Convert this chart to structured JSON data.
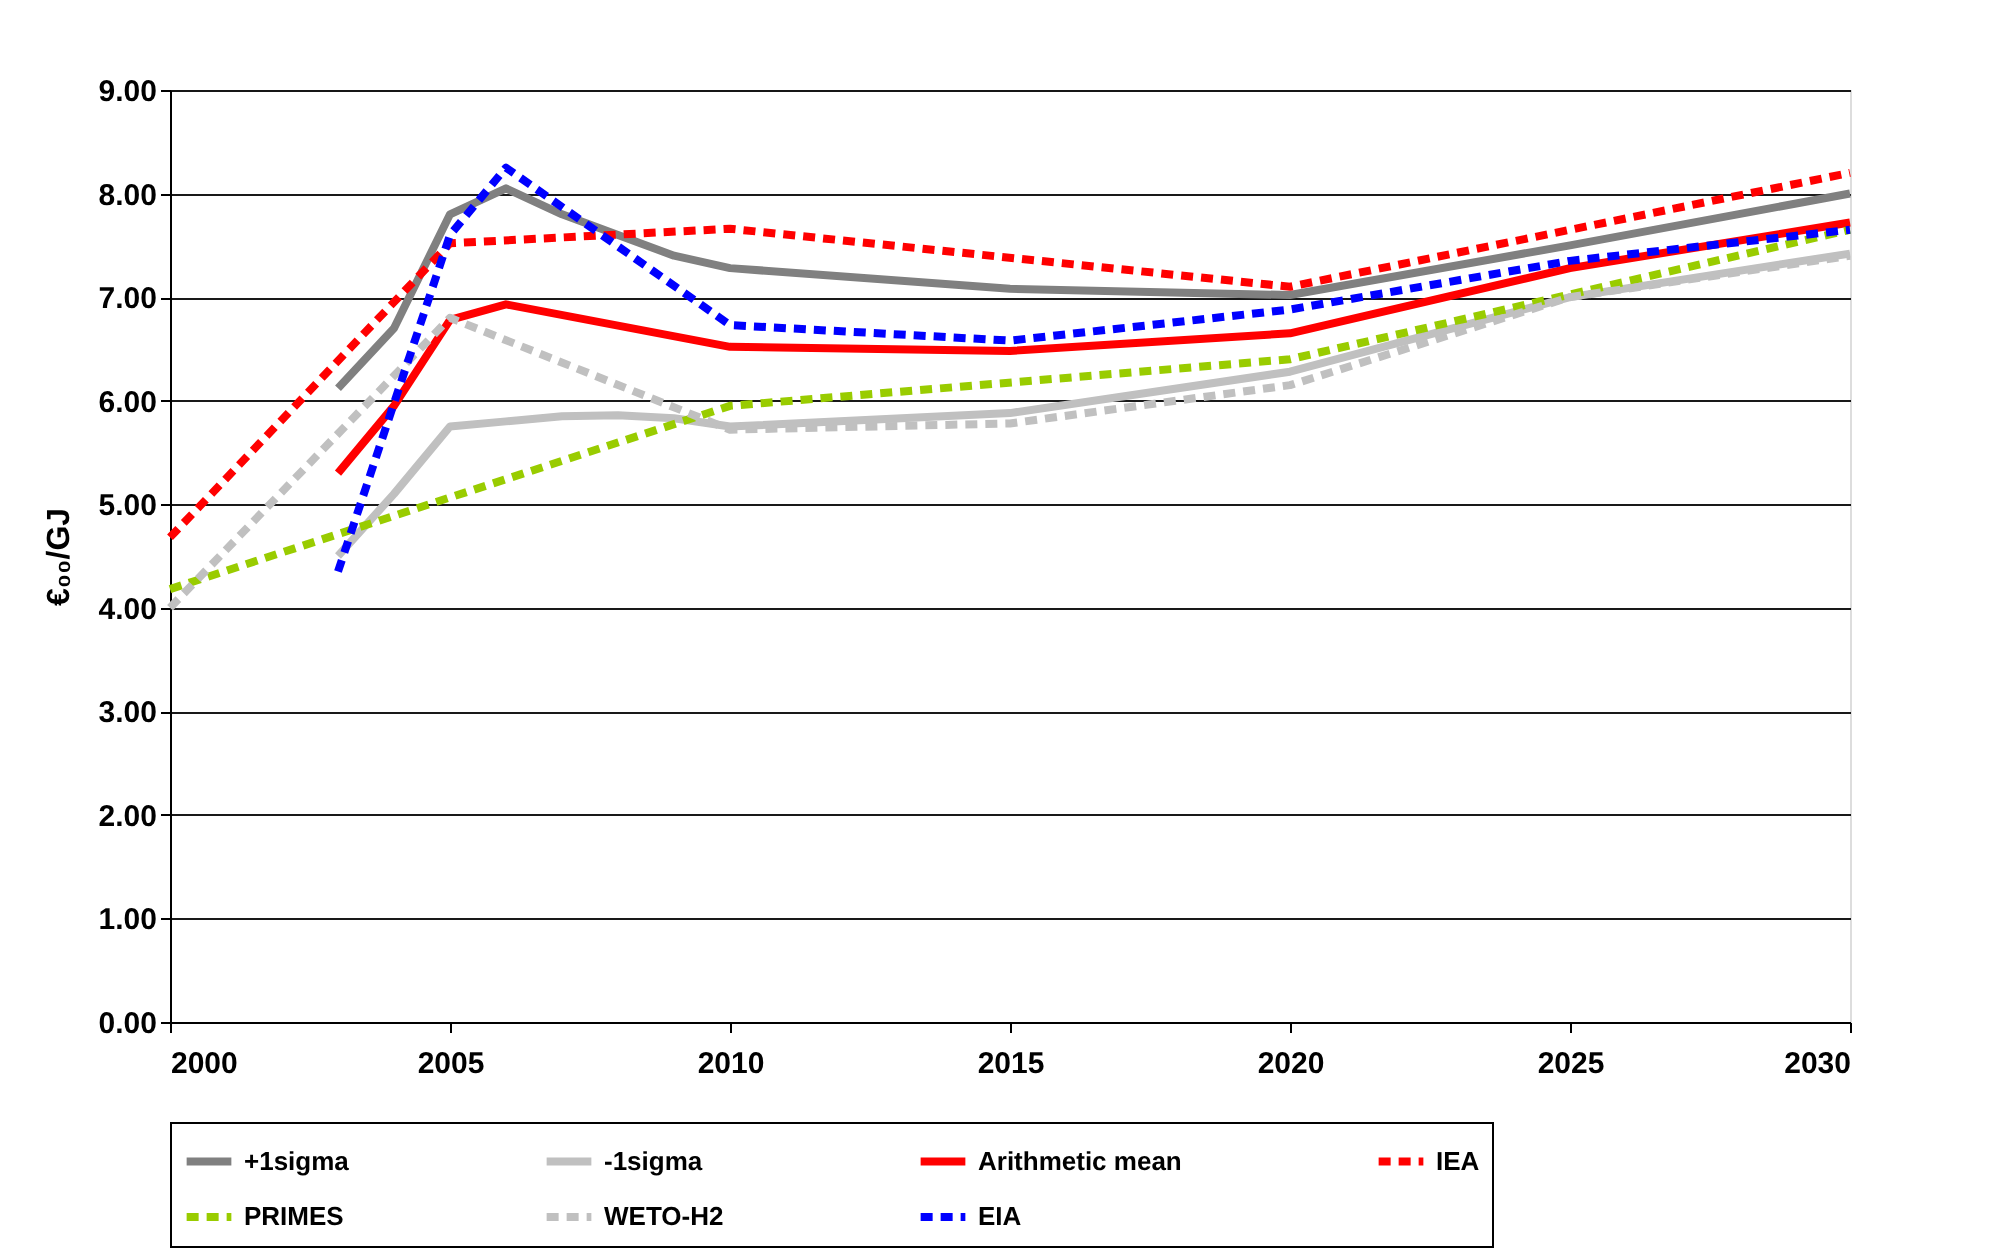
{
  "chart_data": {
    "type": "line",
    "ylabel": "€₀₀/GJ",
    "xlim": [
      2000,
      2030
    ],
    "xticks": [
      2000,
      2005,
      2010,
      2015,
      2020,
      2025,
      2030
    ],
    "ylim": [
      0,
      9
    ],
    "yticks": [
      {
        "value": 0,
        "label": "0.00"
      },
      {
        "value": 1,
        "label": "1.00"
      },
      {
        "value": 2,
        "label": "2.00"
      },
      {
        "value": 3,
        "label": "3.00"
      },
      {
        "value": 4,
        "label": "4.00"
      },
      {
        "value": 5,
        "label": "5.00"
      },
      {
        "value": 6,
        "label": "6.00"
      },
      {
        "value": 7,
        "label": "7.00"
      },
      {
        "value": 8,
        "label": "8.00"
      },
      {
        "value": 9,
        "label": "9.00"
      }
    ],
    "grid": "y",
    "legend": "bottom",
    "marker": "none",
    "series": [
      {
        "name": "+1sigma",
        "color": "#808080",
        "line_style": "solid",
        "x": [
          2003,
          2004,
          2005,
          2006,
          2007,
          2008,
          2009,
          2010,
          2015,
          2020,
          2025,
          2030
        ],
        "values": [
          6.12,
          6.7,
          7.8,
          8.05,
          7.8,
          7.6,
          7.4,
          7.28,
          7.08,
          7.02,
          7.5,
          8.0
        ]
      },
      {
        "name": "-1sigma",
        "color": "#c0c0c0",
        "line_style": "solid",
        "x": [
          2003,
          2004,
          2005,
          2006,
          2007,
          2008,
          2009,
          2010,
          2015,
          2020,
          2025,
          2030
        ],
        "values": [
          4.5,
          5.1,
          5.75,
          5.8,
          5.85,
          5.86,
          5.83,
          5.75,
          5.88,
          6.28,
          7.0,
          7.42
        ]
      },
      {
        "name": "Arithmetic mean",
        "color": "#ff0000",
        "line_style": "solid",
        "x": [
          2003,
          2004,
          2005,
          2006,
          2010,
          2015,
          2020,
          2025,
          2030
        ],
        "values": [
          5.3,
          5.95,
          6.78,
          6.93,
          6.52,
          6.48,
          6.65,
          7.28,
          7.72
        ]
      },
      {
        "name": "IEA",
        "color": "#ff0000",
        "line_style": "dashed",
        "x": [
          2000,
          2005,
          2010,
          2020,
          2030
        ],
        "values": [
          4.68,
          7.52,
          7.66,
          7.1,
          8.2
        ]
      },
      {
        "name": "PRIMES",
        "color": "#99cc00",
        "line_style": "dashed",
        "x": [
          2000,
          2010,
          2020,
          2030
        ],
        "values": [
          4.18,
          5.95,
          6.4,
          7.65
        ]
      },
      {
        "name": "WETO-H2",
        "color": "#c0c0c0",
        "line_style": "dashed",
        "x": [
          2000,
          2005,
          2010,
          2015,
          2020,
          2025,
          2030
        ],
        "values": [
          4.0,
          6.8,
          5.72,
          5.78,
          6.15,
          7.0,
          7.4
        ]
      },
      {
        "name": "EIA",
        "color": "#0000ff",
        "line_style": "dashed",
        "x": [
          2003,
          2005,
          2006,
          2010,
          2015,
          2020,
          2025,
          2030
        ],
        "values": [
          4.35,
          7.6,
          8.25,
          6.73,
          6.58,
          6.88,
          7.35,
          7.65
        ]
      }
    ]
  }
}
